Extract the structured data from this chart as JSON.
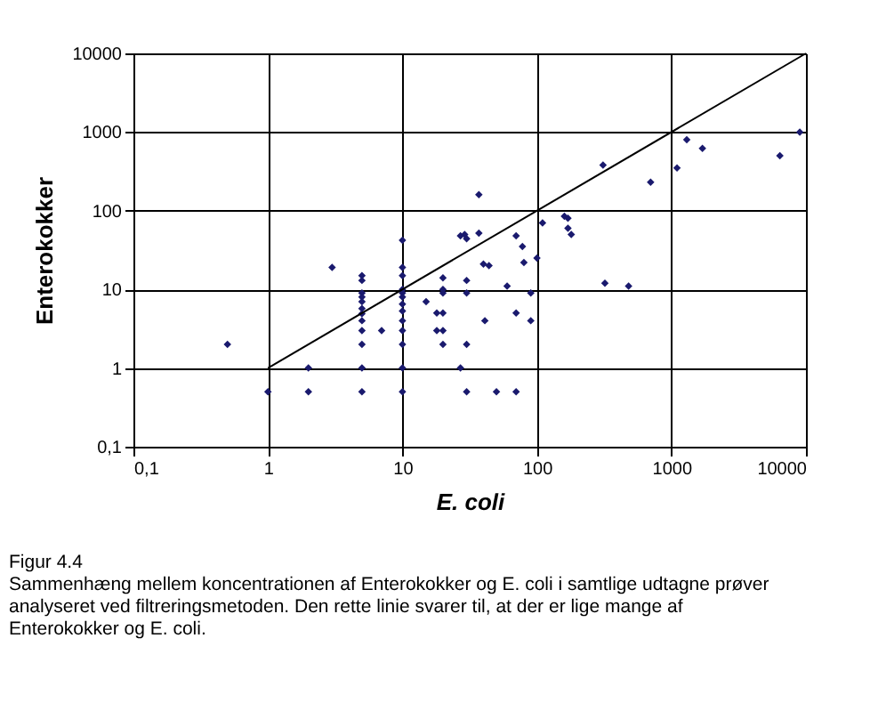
{
  "chart_data": {
    "type": "scatter",
    "xlabel": "E. coli",
    "ylabel": "Enterokokker",
    "annotations": [
      "Figur 4.4",
      "Sammenhæng mellem koncentrationen af Enterokokker og E. coli i samtlige udtagne prøver analyseret ved filtreringsmetoden. Den rette linie svarer til, at der er lige mange af Enterokokker og E. coli."
    ],
    "log": "xy",
    "grid": true,
    "xlim": [
      0.1,
      10000
    ],
    "ylim": [
      0.1,
      10000
    ],
    "xticks": [
      {
        "value": 0.1,
        "label": "0,1"
      },
      1,
      10,
      100,
      1000,
      10000
    ],
    "yticks": [
      {
        "value": 0.1,
        "label": "0,1"
      },
      1,
      10,
      100,
      1000,
      10000
    ],
    "series": [
      {
        "color": "#1a1a6e",
        "marker": "diamond",
        "x": [
          0.5,
          1,
          2,
          2,
          3,
          5,
          5,
          5,
          5,
          5,
          5,
          5,
          5,
          5,
          5,
          5,
          5,
          7,
          10,
          10,
          10,
          10,
          10,
          10,
          10,
          10,
          10,
          10,
          10,
          10,
          10,
          15,
          18,
          20,
          18,
          20,
          20,
          20,
          20,
          20,
          27,
          29,
          30,
          30,
          30,
          30,
          27,
          30,
          37,
          37,
          40,
          44,
          41,
          50,
          60,
          70,
          78,
          80,
          70,
          70,
          90,
          90,
          100,
          110,
          160,
          170,
          170,
          180,
          320,
          480,
          310,
          700,
          1100,
          1300,
          1700,
          6400,
          9000
        ],
        "values": [
          2,
          0.5,
          1,
          0.5,
          19,
          15,
          13,
          9,
          8,
          7,
          5.7,
          4.9,
          4,
          3,
          2,
          1,
          0.5,
          3,
          42,
          19,
          15,
          10,
          9,
          8,
          6.5,
          5.3,
          4,
          3,
          2,
          1,
          0.5,
          7,
          5,
          5,
          3,
          3,
          14,
          10,
          9,
          2,
          48,
          50,
          44,
          13,
          9,
          2,
          1,
          0.5,
          52,
          160,
          21,
          20,
          4,
          0.5,
          11,
          48,
          35,
          22,
          5,
          0.5,
          9,
          4,
          25,
          70,
          85,
          80,
          60,
          50,
          12,
          11,
          380,
          230,
          350,
          800,
          620,
          500,
          1000
        ]
      },
      {
        "type": "line",
        "color": "#000000",
        "line_style": "solid",
        "marker": "none",
        "x": [
          1,
          10000
        ],
        "values": [
          1,
          10000
        ]
      }
    ]
  }
}
